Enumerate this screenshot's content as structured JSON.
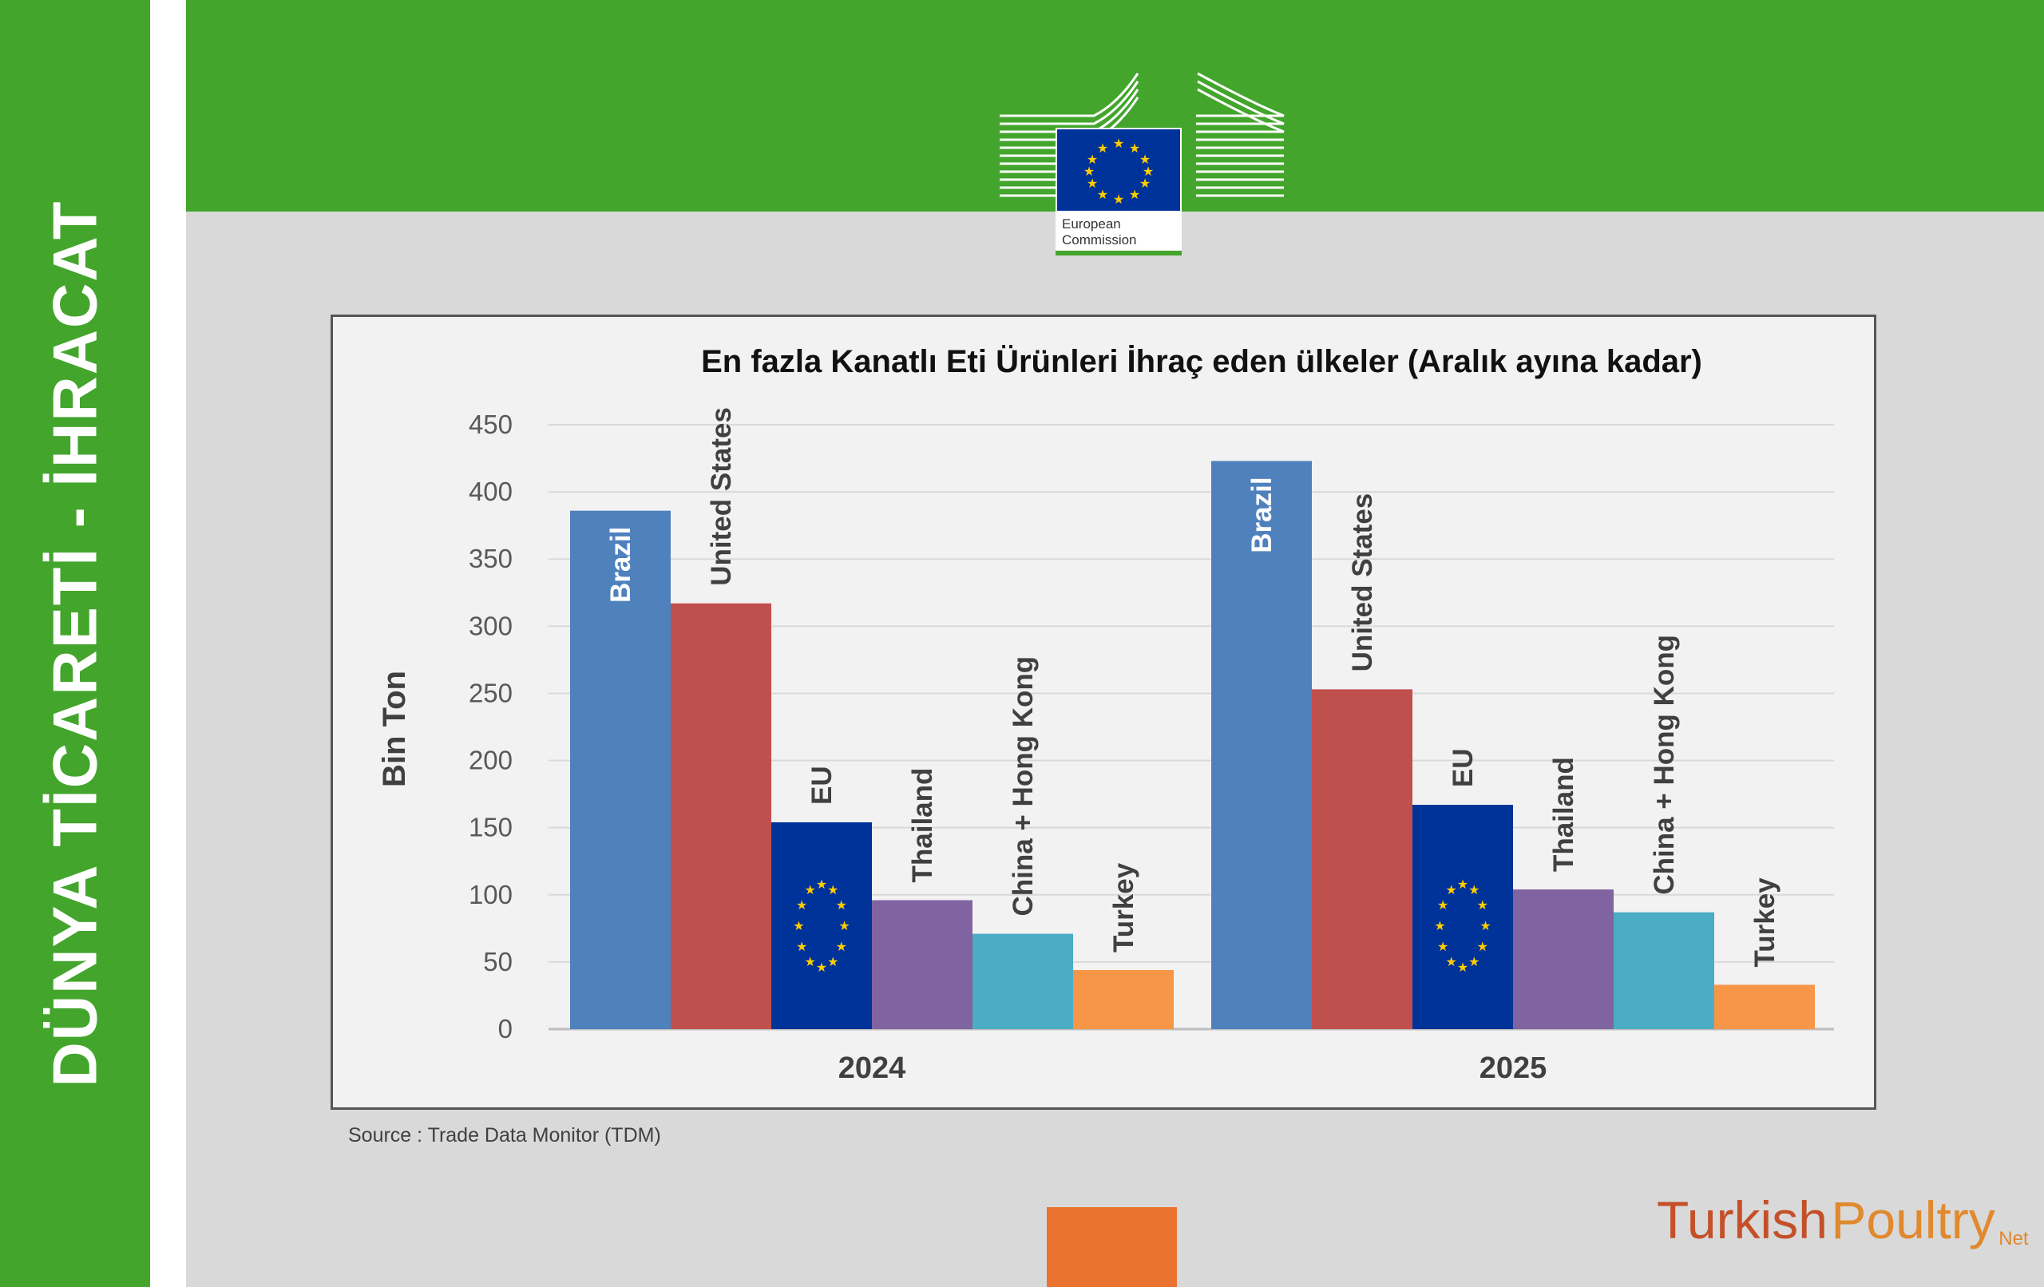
{
  "side_title": "DÜNYA TİCARETİ - İHRACAT",
  "logo": {
    "line1": "European",
    "line2": "Commission"
  },
  "source": "Source : Trade Data Monitor (TDM)",
  "brand": {
    "part1": "Turkish",
    "part2": "Poultry",
    "part3": "Net"
  },
  "colors": {
    "green": "#43a52c",
    "Brazil": "#4f81bd",
    "United States": "#c0504d",
    "EU": "#003399",
    "Thailand": "#8064a2",
    "China + Hong Kong": "#4bacc6",
    "Turkey": "#f79646"
  },
  "chart_data": {
    "type": "bar",
    "title": "En fazla Kanatlı Eti Ürünleri İhraç eden ülkeler (Aralık ayına kadar)",
    "ylabel": "Bin Ton",
    "xlabel": "",
    "ylim": [
      0,
      450
    ],
    "yticks": [
      0,
      50,
      100,
      150,
      200,
      250,
      300,
      350,
      400,
      450
    ],
    "grid": true,
    "categories": [
      "2024",
      "2025"
    ],
    "series": [
      {
        "name": "Brazil",
        "values": [
          386,
          423
        ]
      },
      {
        "name": "United States",
        "values": [
          317,
          253
        ]
      },
      {
        "name": "EU",
        "values": [
          154,
          167
        ]
      },
      {
        "name": "Thailand",
        "values": [
          96,
          104
        ]
      },
      {
        "name": "China + Hong Kong",
        "values": [
          71,
          87
        ]
      },
      {
        "name": "Turkey",
        "values": [
          44,
          33
        ]
      }
    ]
  }
}
